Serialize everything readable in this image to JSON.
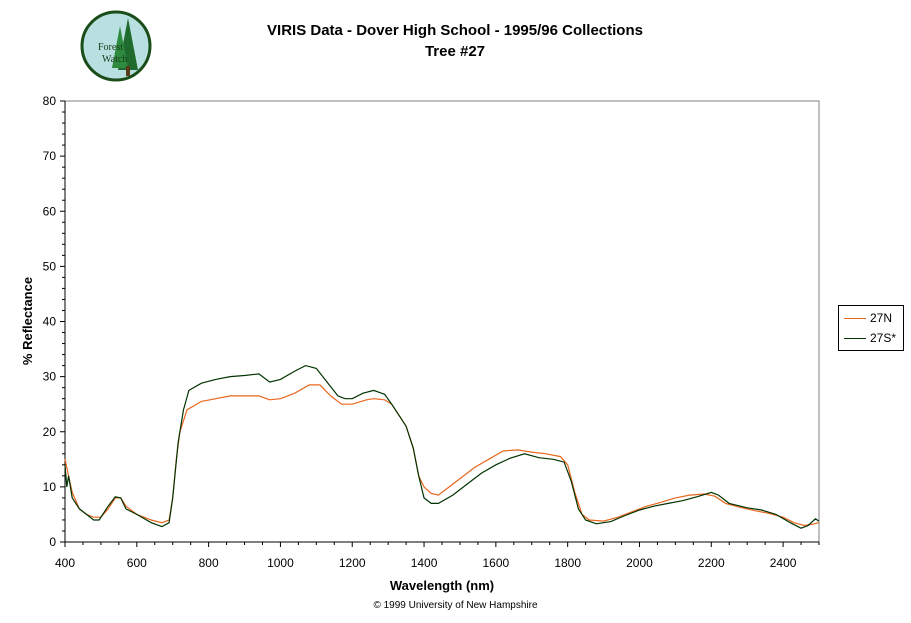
{
  "logo": {
    "text_line1": "Forest",
    "text_line2": "Watch"
  },
  "title_line1": "VIRIS Data - Dover High School - 1995/96 Collections",
  "title_line2": "Tree #27",
  "copyright": "© 1999 University of New Hampshire",
  "chart_data": {
    "type": "line",
    "title": "VIRIS Data - Dover High School - 1995/96 Collections",
    "subtitle": "Tree #27",
    "xlabel": "Wavelength (nm)",
    "ylabel": "% Reflectance",
    "xlim": [
      400,
      2500
    ],
    "ylim": [
      0,
      80
    ],
    "xticks": [
      400,
      600,
      800,
      1000,
      1200,
      1400,
      1600,
      1800,
      2000,
      2200,
      2400
    ],
    "yticks": [
      0,
      10,
      20,
      30,
      40,
      50,
      60,
      70,
      80
    ],
    "legend_position": "right",
    "grid": false,
    "series": [
      {
        "name": "27N",
        "color": "#e8661e",
        "points": [
          [
            400,
            15
          ],
          [
            410,
            12
          ],
          [
            420,
            9
          ],
          [
            440,
            6
          ],
          [
            460,
            5
          ],
          [
            480,
            4.5
          ],
          [
            500,
            4.5
          ],
          [
            520,
            6
          ],
          [
            540,
            8
          ],
          [
            555,
            8
          ],
          [
            570,
            6.5
          ],
          [
            600,
            5
          ],
          [
            640,
            4
          ],
          [
            670,
            3.5
          ],
          [
            690,
            4
          ],
          [
            700,
            8
          ],
          [
            710,
            15
          ],
          [
            720,
            20
          ],
          [
            740,
            24
          ],
          [
            780,
            25.5
          ],
          [
            820,
            26
          ],
          [
            860,
            26.5
          ],
          [
            900,
            26.5
          ],
          [
            940,
            26.5
          ],
          [
            970,
            25.8
          ],
          [
            1000,
            26
          ],
          [
            1040,
            27
          ],
          [
            1080,
            28.5
          ],
          [
            1110,
            28.5
          ],
          [
            1140,
            26.5
          ],
          [
            1170,
            25
          ],
          [
            1200,
            25
          ],
          [
            1240,
            25.8
          ],
          [
            1260,
            26
          ],
          [
            1290,
            25.8
          ],
          [
            1310,
            25
          ],
          [
            1330,
            23
          ],
          [
            1350,
            21
          ],
          [
            1370,
            17
          ],
          [
            1385,
            12
          ],
          [
            1400,
            10
          ],
          [
            1420,
            8.8
          ],
          [
            1440,
            8.5
          ],
          [
            1460,
            9.5
          ],
          [
            1500,
            11.5
          ],
          [
            1540,
            13.5
          ],
          [
            1580,
            15
          ],
          [
            1620,
            16.5
          ],
          [
            1660,
            16.7
          ],
          [
            1700,
            16.3
          ],
          [
            1740,
            16
          ],
          [
            1780,
            15.5
          ],
          [
            1800,
            14
          ],
          [
            1820,
            9
          ],
          [
            1840,
            5
          ],
          [
            1860,
            4
          ],
          [
            1900,
            3.8
          ],
          [
            1940,
            4.5
          ],
          [
            1980,
            5.5
          ],
          [
            2020,
            6.5
          ],
          [
            2060,
            7.2
          ],
          [
            2100,
            8
          ],
          [
            2140,
            8.5
          ],
          [
            2180,
            8.7
          ],
          [
            2210,
            8.3
          ],
          [
            2240,
            7
          ],
          [
            2280,
            6.3
          ],
          [
            2320,
            5.7
          ],
          [
            2360,
            5.2
          ],
          [
            2400,
            4.5
          ],
          [
            2430,
            3.5
          ],
          [
            2460,
            3
          ],
          [
            2480,
            3.2
          ],
          [
            2500,
            3.5
          ]
        ]
      },
      {
        "name": "27S*",
        "color": "#003300",
        "points": [
          [
            400,
            14
          ],
          [
            405,
            10
          ],
          [
            410,
            12
          ],
          [
            420,
            8
          ],
          [
            440,
            6
          ],
          [
            460,
            5
          ],
          [
            480,
            4
          ],
          [
            495,
            4
          ],
          [
            520,
            6.5
          ],
          [
            540,
            8.2
          ],
          [
            555,
            8
          ],
          [
            570,
            6
          ],
          [
            600,
            5
          ],
          [
            640,
            3.5
          ],
          [
            670,
            2.8
          ],
          [
            690,
            3.5
          ],
          [
            700,
            8
          ],
          [
            715,
            18
          ],
          [
            730,
            24
          ],
          [
            745,
            27.5
          ],
          [
            780,
            28.8
          ],
          [
            820,
            29.5
          ],
          [
            860,
            30
          ],
          [
            900,
            30.2
          ],
          [
            940,
            30.5
          ],
          [
            970,
            29
          ],
          [
            1000,
            29.5
          ],
          [
            1040,
            31
          ],
          [
            1070,
            32
          ],
          [
            1100,
            31.5
          ],
          [
            1130,
            29
          ],
          [
            1160,
            26.5
          ],
          [
            1180,
            26
          ],
          [
            1200,
            26
          ],
          [
            1230,
            27
          ],
          [
            1260,
            27.5
          ],
          [
            1290,
            26.8
          ],
          [
            1310,
            25
          ],
          [
            1330,
            23
          ],
          [
            1350,
            21
          ],
          [
            1370,
            17
          ],
          [
            1385,
            12
          ],
          [
            1400,
            8
          ],
          [
            1420,
            7
          ],
          [
            1440,
            7
          ],
          [
            1480,
            8.5
          ],
          [
            1520,
            10.5
          ],
          [
            1560,
            12.5
          ],
          [
            1600,
            14
          ],
          [
            1640,
            15.2
          ],
          [
            1680,
            16
          ],
          [
            1720,
            15.3
          ],
          [
            1760,
            15
          ],
          [
            1790,
            14.5
          ],
          [
            1810,
            11
          ],
          [
            1830,
            6
          ],
          [
            1850,
            4
          ],
          [
            1880,
            3.3
          ],
          [
            1920,
            3.7
          ],
          [
            1960,
            4.8
          ],
          [
            2000,
            5.8
          ],
          [
            2040,
            6.5
          ],
          [
            2080,
            7
          ],
          [
            2120,
            7.5
          ],
          [
            2160,
            8.2
          ],
          [
            2200,
            9
          ],
          [
            2220,
            8.5
          ],
          [
            2250,
            7
          ],
          [
            2300,
            6.2
          ],
          [
            2340,
            5.8
          ],
          [
            2380,
            5
          ],
          [
            2420,
            3.5
          ],
          [
            2450,
            2.5
          ],
          [
            2470,
            3
          ],
          [
            2490,
            4.2
          ],
          [
            2500,
            3.8
          ]
        ]
      }
    ]
  }
}
